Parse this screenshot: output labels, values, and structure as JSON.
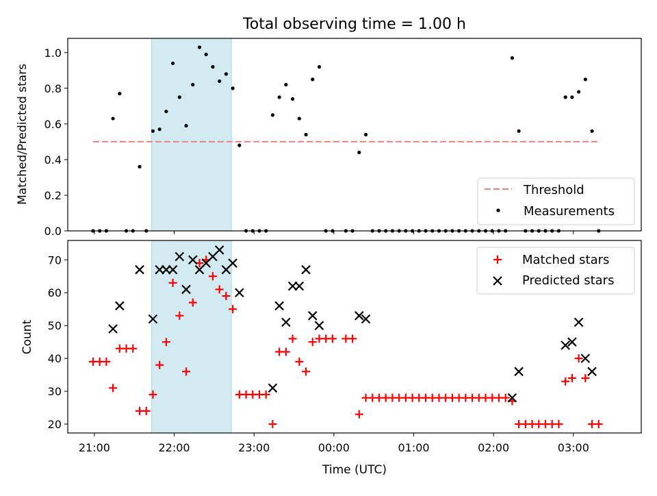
{
  "title": "Total observing time = 1.00 h",
  "colors": {
    "threshold": "#f08080",
    "measurement": "#000000",
    "matched": "#ff0000",
    "predicted": "#000000",
    "highlight": "#add8e6"
  },
  "chart_data": [
    {
      "type": "scatter",
      "ylabel": "Matched/Predicted stars",
      "ylim": [
        0,
        1.08
      ],
      "xlim": [
        "20:40",
        "03:51"
      ],
      "y_ticks": [
        "0.0",
        "0.2",
        "0.4",
        "0.6",
        "0.8",
        "1.0"
      ],
      "highlight_span": [
        "21:43",
        "22:43"
      ],
      "threshold": {
        "name": "Threshold",
        "value": 0.5,
        "x_range": [
          "20:59",
          "03:19"
        ]
      },
      "legend_position": "lower right",
      "series": [
        {
          "name": "Measurements",
          "points": [
            [
              "20:59",
              0.0
            ],
            [
              "21:04",
              0.0
            ],
            [
              "21:09",
              0.0
            ],
            [
              "21:14",
              0.63
            ],
            [
              "21:19",
              0.77
            ],
            [
              "21:24",
              0.0
            ],
            [
              "21:29",
              0.0
            ],
            [
              "21:34",
              0.36
            ],
            [
              "21:39",
              0.0
            ],
            [
              "21:44",
              0.56
            ],
            [
              "21:49",
              0.57
            ],
            [
              "21:54",
              0.67
            ],
            [
              "21:59",
              0.94
            ],
            [
              "22:04",
              0.75
            ],
            [
              "22:09",
              0.59
            ],
            [
              "22:14",
              0.82
            ],
            [
              "22:19",
              1.03
            ],
            [
              "22:24",
              0.99
            ],
            [
              "22:29",
              0.92
            ],
            [
              "22:34",
              0.84
            ],
            [
              "22:39",
              0.88
            ],
            [
              "22:44",
              0.8
            ],
            [
              "22:49",
              0.48
            ],
            [
              "22:54",
              0.0
            ],
            [
              "22:59",
              0.0
            ],
            [
              "23:04",
              0.0
            ],
            [
              "23:09",
              0.0
            ],
            [
              "23:14",
              0.65
            ],
            [
              "23:19",
              0.75
            ],
            [
              "23:24",
              0.82
            ],
            [
              "23:29",
              0.74
            ],
            [
              "23:34",
              0.63
            ],
            [
              "23:39",
              0.54
            ],
            [
              "23:44",
              0.85
            ],
            [
              "23:49",
              0.92
            ],
            [
              "23:54",
              0.0
            ],
            [
              "23:59",
              0.0
            ],
            [
              "00:09",
              0.0
            ],
            [
              "00:14",
              0.0
            ],
            [
              "00:19",
              0.44
            ],
            [
              "00:24",
              0.54
            ],
            [
              "00:29",
              0.0
            ],
            [
              "00:34",
              0.0
            ],
            [
              "00:39",
              0.0
            ],
            [
              "00:44",
              0.0
            ],
            [
              "00:49",
              0.0
            ],
            [
              "00:54",
              0.0
            ],
            [
              "00:59",
              0.0
            ],
            [
              "01:04",
              0.0
            ],
            [
              "01:09",
              0.0
            ],
            [
              "01:14",
              0.0
            ],
            [
              "01:19",
              0.0
            ],
            [
              "01:24",
              0.0
            ],
            [
              "01:29",
              0.0
            ],
            [
              "01:34",
              0.0
            ],
            [
              "01:39",
              0.0
            ],
            [
              "01:44",
              0.0
            ],
            [
              "01:49",
              0.0
            ],
            [
              "01:54",
              0.0
            ],
            [
              "01:59",
              0.0
            ],
            [
              "02:04",
              0.0
            ],
            [
              "02:09",
              0.0
            ],
            [
              "02:14",
              0.97
            ],
            [
              "02:19",
              0.56
            ],
            [
              "02:24",
              0.0
            ],
            [
              "02:29",
              0.0
            ],
            [
              "02:34",
              0.0
            ],
            [
              "02:39",
              0.0
            ],
            [
              "02:44",
              0.0
            ],
            [
              "02:49",
              0.0
            ],
            [
              "02:54",
              0.75
            ],
            [
              "02:59",
              0.75
            ],
            [
              "03:04",
              0.78
            ],
            [
              "03:09",
              0.85
            ],
            [
              "03:14",
              0.56
            ],
            [
              "03:19",
              0.0
            ]
          ]
        }
      ]
    },
    {
      "type": "scatter",
      "xlabel": "Time (UTC)",
      "ylabel": "Count",
      "ylim": [
        17.3,
        75.9
      ],
      "xlim": [
        "20:40",
        "03:51"
      ],
      "y_ticks": [
        "20",
        "30",
        "40",
        "50",
        "60",
        "70"
      ],
      "x_ticks": [
        "21:00",
        "22:00",
        "23:00",
        "00:00",
        "01:00",
        "02:00",
        "03:00"
      ],
      "highlight_span": [
        "21:43",
        "22:43"
      ],
      "legend_position": "upper right",
      "series": [
        {
          "name": "Matched stars",
          "marker": "plus",
          "points": [
            [
              "20:59",
              39
            ],
            [
              "21:04",
              39
            ],
            [
              "21:09",
              39
            ],
            [
              "21:14",
              31
            ],
            [
              "21:19",
              43
            ],
            [
              "21:24",
              43
            ],
            [
              "21:29",
              43
            ],
            [
              "21:34",
              24
            ],
            [
              "21:39",
              24
            ],
            [
              "21:44",
              29
            ],
            [
              "21:49",
              38
            ],
            [
              "21:54",
              45
            ],
            [
              "21:59",
              63
            ],
            [
              "22:04",
              53
            ],
            [
              "22:09",
              36
            ],
            [
              "22:14",
              57
            ],
            [
              "22:19",
              69
            ],
            [
              "22:24",
              70
            ],
            [
              "22:29",
              65
            ],
            [
              "22:34",
              61
            ],
            [
              "22:39",
              59
            ],
            [
              "22:44",
              55
            ],
            [
              "22:49",
              29
            ],
            [
              "22:54",
              29
            ],
            [
              "22:59",
              29
            ],
            [
              "23:04",
              29
            ],
            [
              "23:09",
              29
            ],
            [
              "23:14",
              20
            ],
            [
              "23:19",
              42
            ],
            [
              "23:24",
              42
            ],
            [
              "23:29",
              46
            ],
            [
              "23:34",
              39
            ],
            [
              "23:39",
              36
            ],
            [
              "23:44",
              45
            ],
            [
              "23:49",
              46
            ],
            [
              "23:54",
              46
            ],
            [
              "23:59",
              46
            ],
            [
              "00:09",
              46
            ],
            [
              "00:14",
              46
            ],
            [
              "00:19",
              23
            ],
            [
              "00:24",
              28
            ],
            [
              "00:29",
              28
            ],
            [
              "00:34",
              28
            ],
            [
              "00:39",
              28
            ],
            [
              "00:44",
              28
            ],
            [
              "00:49",
              28
            ],
            [
              "00:54",
              28
            ],
            [
              "00:59",
              28
            ],
            [
              "01:04",
              28
            ],
            [
              "01:09",
              28
            ],
            [
              "01:14",
              28
            ],
            [
              "01:19",
              28
            ],
            [
              "01:24",
              28
            ],
            [
              "01:29",
              28
            ],
            [
              "01:34",
              28
            ],
            [
              "01:39",
              28
            ],
            [
              "01:44",
              28
            ],
            [
              "01:49",
              28
            ],
            [
              "01:54",
              28
            ],
            [
              "01:59",
              28
            ],
            [
              "02:04",
              28
            ],
            [
              "02:09",
              28
            ],
            [
              "02:14",
              27
            ],
            [
              "02:19",
              20
            ],
            [
              "02:24",
              20
            ],
            [
              "02:29",
              20
            ],
            [
              "02:34",
              20
            ],
            [
              "02:39",
              20
            ],
            [
              "02:44",
              20
            ],
            [
              "02:49",
              20
            ],
            [
              "02:54",
              33
            ],
            [
              "02:59",
              34
            ],
            [
              "03:04",
              40
            ],
            [
              "03:09",
              34
            ],
            [
              "03:14",
              20
            ],
            [
              "03:19",
              20
            ]
          ]
        },
        {
          "name": "Predicted stars",
          "marker": "x",
          "points": [
            [
              "21:14",
              49
            ],
            [
              "21:19",
              56
            ],
            [
              "21:34",
              67
            ],
            [
              "21:44",
              52
            ],
            [
              "21:49",
              67
            ],
            [
              "21:54",
              67
            ],
            [
              "21:59",
              67
            ],
            [
              "22:04",
              71
            ],
            [
              "22:09",
              61
            ],
            [
              "22:14",
              70
            ],
            [
              "22:19",
              67
            ],
            [
              "22:24",
              69
            ],
            [
              "22:29",
              71
            ],
            [
              "22:34",
              73
            ],
            [
              "22:39",
              67
            ],
            [
              "22:44",
              69
            ],
            [
              "22:49",
              60
            ],
            [
              "23:14",
              31
            ],
            [
              "23:19",
              56
            ],
            [
              "23:24",
              51
            ],
            [
              "23:29",
              62
            ],
            [
              "23:34",
              62
            ],
            [
              "23:39",
              67
            ],
            [
              "23:44",
              53
            ],
            [
              "23:49",
              50
            ],
            [
              "00:19",
              53
            ],
            [
              "00:24",
              52
            ],
            [
              "02:14",
              28
            ],
            [
              "02:19",
              36
            ],
            [
              "02:54",
              44
            ],
            [
              "02:59",
              45
            ],
            [
              "03:04",
              51
            ],
            [
              "03:09",
              40
            ],
            [
              "03:14",
              36
            ]
          ]
        }
      ]
    }
  ]
}
